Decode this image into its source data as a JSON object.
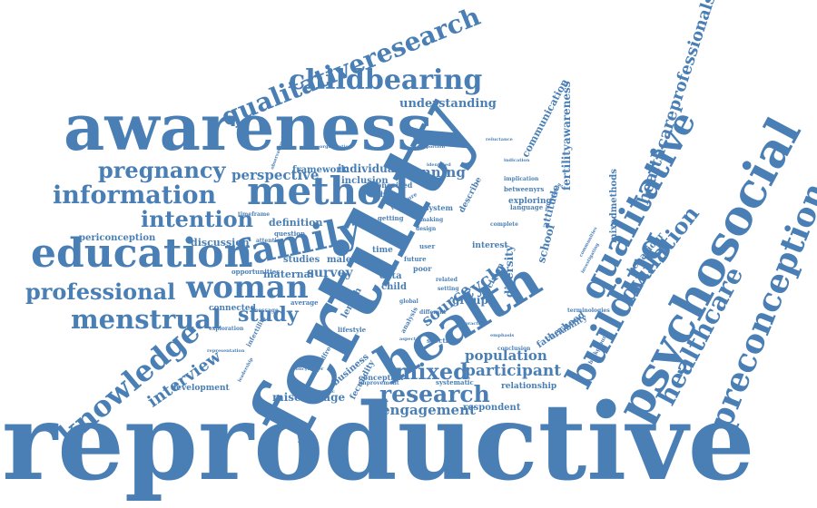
{
  "words": [
    {
      "text": "reproductive",
      "color": "#4a7fb5"
    },
    {
      "text": "fertility",
      "color": "#4a7fb5"
    },
    {
      "text": "awareness",
      "color": "#4a7fb5"
    },
    {
      "text": "health",
      "color": "#4a7fb5"
    },
    {
      "text": "psychosocial",
      "color": "#4a7fb5"
    },
    {
      "text": "education",
      "color": "#4a7fb5"
    },
    {
      "text": "building",
      "color": "#4a7fb5"
    },
    {
      "text": "qualitative",
      "color": "#4a7fb5"
    },
    {
      "text": "method",
      "color": "#4a7fb5"
    },
    {
      "text": "family",
      "color": "#4a7fb5"
    },
    {
      "text": "woman",
      "color": "#4a7fb5"
    },
    {
      "text": "preconception",
      "color": "#4a7fb5"
    },
    {
      "text": "knowledge",
      "color": "#4a7fb5"
    },
    {
      "text": "healthcare",
      "color": "#4a7fb5"
    },
    {
      "text": "qualitativeresearch",
      "color": "#4a7fb5"
    },
    {
      "text": "childbearing",
      "color": "#4a7fb5"
    },
    {
      "text": "pregnancy",
      "color": "#4a7fb5"
    },
    {
      "text": "information",
      "color": "#4a7fb5"
    },
    {
      "text": "professional",
      "color": "#4a7fb5"
    },
    {
      "text": "menstrual",
      "color": "#4a7fb5"
    },
    {
      "text": "intention",
      "color": "#4a7fb5"
    },
    {
      "text": "research",
      "color": "#4a7fb5"
    },
    {
      "text": "ovulation",
      "color": "#4a7fb5"
    },
    {
      "text": "mixed",
      "color": "#4a7fb5"
    },
    {
      "text": "healthcareprofessionals",
      "color": "#4a7fb5"
    },
    {
      "text": "interview",
      "color": "#4a7fb5"
    },
    {
      "text": "study",
      "color": "#4a7fb5"
    },
    {
      "text": "participant",
      "color": "#4a7fb5"
    },
    {
      "text": "population",
      "color": "#4a7fb5"
    },
    {
      "text": "engagement",
      "color": "#4a7fb5"
    },
    {
      "text": "cycle",
      "color": "#4a7fb5"
    },
    {
      "text": "source",
      "color": "#4a7fb5"
    },
    {
      "text": "perspective",
      "color": "#4a7fb5"
    },
    {
      "text": "periconception",
      "color": "#4a7fb5"
    },
    {
      "text": "planning",
      "color": "#4a7fb5"
    },
    {
      "text": "understanding",
      "color": "#4a7fb5"
    },
    {
      "text": "fertilityawareness",
      "color": "#4a7fb5"
    },
    {
      "text": "communication",
      "color": "#4a7fb5"
    },
    {
      "text": "miscarriage",
      "color": "#4a7fb5"
    },
    {
      "text": "individual",
      "color": "#4a7fb5"
    },
    {
      "text": "framework",
      "color": "#4a7fb5"
    },
    {
      "text": "definition",
      "color": "#4a7fb5"
    },
    {
      "text": "discussion",
      "color": "#4a7fb5"
    },
    {
      "text": "maternal",
      "color": "#4a7fb5"
    },
    {
      "text": "survey",
      "color": "#4a7fb5"
    },
    {
      "text": "male",
      "color": "#4a7fb5"
    },
    {
      "text": "studies",
      "color": "#4a7fb5"
    },
    {
      "text": "inclusion",
      "color": "#4a7fb5"
    },
    {
      "text": "group",
      "color": "#4a7fb5"
    },
    {
      "text": "relationship",
      "color": "#4a7fb5"
    },
    {
      "text": "respondent",
      "color": "#4a7fb5"
    },
    {
      "text": "development",
      "color": "#4a7fb5"
    },
    {
      "text": "fatherhood",
      "color": "#4a7fb5"
    },
    {
      "text": "diversity",
      "color": "#4a7fb5"
    },
    {
      "text": "school",
      "color": "#4a7fb5"
    },
    {
      "text": "attitude",
      "color": "#4a7fb5"
    },
    {
      "text": "exploring",
      "color": "#4a7fb5"
    },
    {
      "text": "mixedmethods",
      "color": "#4a7fb5"
    },
    {
      "text": "behaviour",
      "color": "#4a7fb5"
    },
    {
      "text": "variability",
      "color": "#4a7fb5"
    },
    {
      "text": "connected",
      "color": "#4a7fb5"
    },
    {
      "text": "data",
      "color": "#4a7fb5"
    },
    {
      "text": "child",
      "color": "#4a7fb5"
    },
    {
      "text": "time",
      "color": "#4a7fb5"
    },
    {
      "text": "length",
      "color": "#4a7fb5"
    },
    {
      "text": "interest",
      "color": "#4a7fb5"
    },
    {
      "text": "decision",
      "color": "#4a7fb5"
    },
    {
      "text": "conceived",
      "color": "#4a7fb5"
    },
    {
      "text": "tableau",
      "color": "#4a7fb5"
    },
    {
      "text": "system",
      "color": "#4a7fb5"
    },
    {
      "text": "describe",
      "color": "#4a7fb5"
    },
    {
      "text": "business",
      "color": "#4a7fb5"
    },
    {
      "text": "fecundity",
      "color": "#4a7fb5"
    },
    {
      "text": "conception",
      "color": "#4a7fb5"
    },
    {
      "text": "systematic",
      "color": "#4a7fb5"
    },
    {
      "text": "future",
      "color": "#4a7fb5"
    },
    {
      "text": "poor",
      "color": "#4a7fb5"
    },
    {
      "text": "test",
      "color": "#4a7fb5"
    },
    {
      "text": "opportunities",
      "color": "#4a7fb5"
    },
    {
      "text": "language",
      "color": "#4a7fb5"
    },
    {
      "text": "implication",
      "color": "#4a7fb5"
    },
    {
      "text": "betweenyrs",
      "color": "#4a7fb5"
    },
    {
      "text": "lifestyle",
      "color": "#4a7fb5"
    },
    {
      "text": "childfree",
      "color": "#4a7fb5"
    },
    {
      "text": "infertility",
      "color": "#4a7fb5"
    },
    {
      "text": "exploration",
      "color": "#4a7fb5"
    },
    {
      "text": "average",
      "color": "#4a7fb5"
    },
    {
      "text": "spectrum",
      "color": "#4a7fb5"
    },
    {
      "text": "improvement",
      "color": "#4a7fb5"
    },
    {
      "text": "analysis",
      "color": "#4a7fb5"
    },
    {
      "text": "global",
      "color": "#4a7fb5"
    },
    {
      "text": "user",
      "color": "#4a7fb5"
    },
    {
      "text": "getting",
      "color": "#4a7fb5"
    },
    {
      "text": "question",
      "color": "#4a7fb5"
    },
    {
      "text": "attention",
      "color": "#4a7fb5"
    },
    {
      "text": "timeframe",
      "color": "#4a7fb5"
    },
    {
      "text": "message",
      "color": "#4a7fb5"
    },
    {
      "text": "background",
      "color": "#4a7fb5"
    },
    {
      "text": "representation",
      "color": "#4a7fb5"
    },
    {
      "text": "conclusion",
      "color": "#4a7fb5"
    },
    {
      "text": "terminologies",
      "color": "#4a7fb5"
    },
    {
      "text": "characteristic",
      "color": "#4a7fb5"
    },
    {
      "text": "proportion",
      "color": "#4a7fb5"
    },
    {
      "text": "environment",
      "color": "#4a7fb5"
    },
    {
      "text": "organisation",
      "color": "#4a7fb5"
    },
    {
      "text": "observational",
      "color": "#4a7fb5"
    },
    {
      "text": "leadership",
      "color": "#4a7fb5"
    },
    {
      "text": "policymaker",
      "color": "#4a7fb5"
    },
    {
      "text": "setting",
      "color": "#4a7fb5"
    },
    {
      "text": "related",
      "color": "#4a7fb5"
    },
    {
      "text": "making",
      "color": "#4a7fb5"
    },
    {
      "text": "design",
      "color": "#4a7fb5"
    },
    {
      "text": "literature",
      "color": "#4a7fb5"
    },
    {
      "text": "complete",
      "color": "#4a7fb5"
    },
    {
      "text": "different",
      "color": "#4a7fb5"
    },
    {
      "text": "practice",
      "color": "#4a7fb5"
    },
    {
      "text": "investigating",
      "color": "#4a7fb5"
    },
    {
      "text": "emphasis",
      "color": "#4a7fb5"
    },
    {
      "text": "aspect",
      "color": "#4a7fb5"
    },
    {
      "text": "indication",
      "color": "#4a7fb5"
    },
    {
      "text": "identified",
      "color": "#4a7fb5"
    },
    {
      "text": "stimulating",
      "color": "#4a7fb5"
    },
    {
      "text": "reluctance",
      "color": "#4a7fb5"
    },
    {
      "text": "communities",
      "color": "#4a7fb5"
    }
  ]
}
